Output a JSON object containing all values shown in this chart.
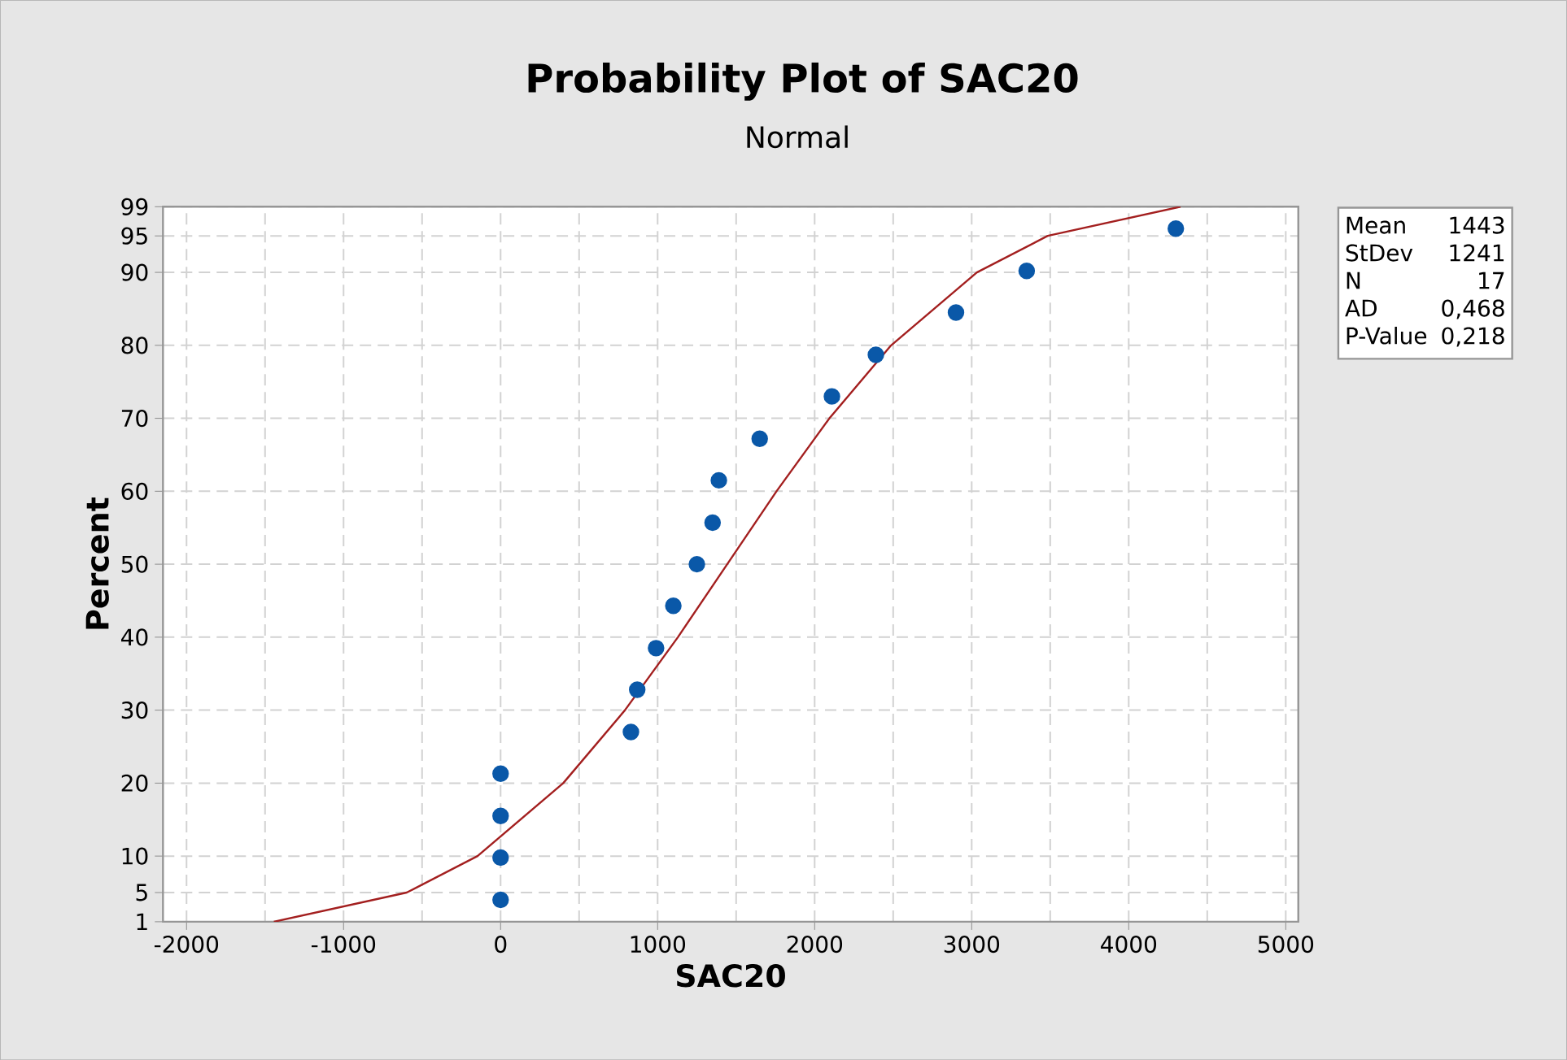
{
  "chart_data": {
    "type": "scatter",
    "title": "Probability Plot of SAC20",
    "subtitle": "Normal",
    "xlabel": "SAC20",
    "ylabel": "Percent",
    "series": [
      {
        "color": "#0a58a8",
        "marker": "circle",
        "x": [
          0,
          0,
          0,
          0,
          830,
          870,
          990,
          1100,
          1250,
          1350,
          1390,
          1650,
          2110,
          2390,
          2900,
          3350,
          4300
        ],
        "values": [
          4,
          9.8,
          15.5,
          21.3,
          27,
          32.8,
          38.5,
          44.3,
          50,
          55.7,
          61.5,
          67.2,
          73,
          78.7,
          84.5,
          90.2,
          96
        ]
      },
      {
        "type": "line",
        "color": "#a31f1f",
        "marker": "none",
        "line_style": "solid",
        "x": [
          -1444,
          -598,
          -147,
          399,
          792,
          1129,
          1443,
          1757,
          2094,
          2487,
          3033,
          3484,
          4330
        ],
        "values": [
          1,
          5,
          10,
          20,
          30,
          40,
          50,
          60,
          70,
          80,
          90,
          95,
          99
        ]
      }
    ],
    "xlim": [
      -2150,
      5080
    ],
    "xticks": [
      -2000,
      -1000,
      0,
      1000,
      2000,
      3000,
      4000,
      5000
    ],
    "ylim": [
      1,
      99
    ],
    "yticks": [
      1,
      5,
      10,
      20,
      30,
      40,
      50,
      60,
      70,
      80,
      90,
      95,
      99
    ],
    "grid": true,
    "annotations": [
      "Mean",
      "1443",
      "StDev",
      "1241",
      "N",
      "17",
      "AD",
      "0,468",
      "P-Value",
      "0,218"
    ]
  }
}
